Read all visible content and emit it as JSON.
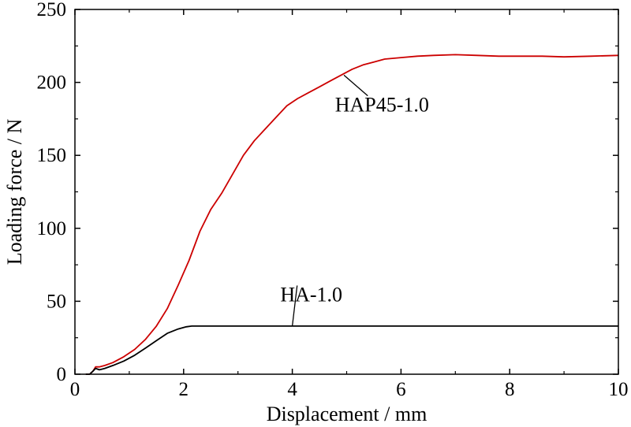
{
  "chart_data": {
    "type": "line",
    "xlabel": "Displacement / mm",
    "ylabel": "Loading force / N",
    "xlim": [
      0,
      10
    ],
    "ylim": [
      0,
      250
    ],
    "xticks": [
      0,
      2,
      4,
      6,
      8,
      10
    ],
    "yticks": [
      0,
      50,
      100,
      150,
      200,
      250
    ],
    "grid": false,
    "legend": "none",
    "series": [
      {
        "name": "HAP45-1.0",
        "color": "#cc0000",
        "x": [
          0.2,
          0.27,
          0.33,
          0.38,
          0.45,
          0.55,
          0.7,
          0.9,
          1.1,
          1.3,
          1.5,
          1.7,
          1.9,
          2.1,
          2.3,
          2.5,
          2.7,
          2.9,
          3.1,
          3.3,
          3.5,
          3.7,
          3.9,
          4.1,
          4.3,
          4.5,
          4.7,
          4.9,
          5.1,
          5.3,
          5.5,
          5.7,
          6.0,
          6.3,
          6.6,
          7.0,
          7.4,
          7.8,
          8.2,
          8.6,
          9.0,
          9.5,
          10.0
        ],
        "y": [
          0,
          0,
          2,
          5,
          5,
          6,
          8,
          12,
          17,
          24,
          33,
          45,
          61,
          78,
          98,
          113,
          124,
          137,
          150,
          160,
          168,
          176,
          184,
          189,
          193,
          197,
          201,
          205,
          209,
          212,
          214,
          216,
          217,
          218,
          218.5,
          219,
          218.5,
          218,
          218,
          218,
          217.5,
          218,
          218.5
        ]
      },
      {
        "name": "HA-1.0",
        "color": "#000000",
        "x": [
          0.2,
          0.27,
          0.33,
          0.38,
          0.45,
          0.55,
          0.7,
          0.9,
          1.1,
          1.3,
          1.5,
          1.7,
          1.9,
          2.05,
          2.15,
          2.3,
          3.0,
          4.0,
          5.0,
          6.0,
          7.0,
          8.0,
          9.0,
          10.0
        ],
        "y": [
          0,
          0,
          2,
          4,
          3,
          4,
          6,
          9,
          13,
          18,
          23,
          28,
          31,
          32.5,
          33,
          33,
          33,
          33,
          33,
          33,
          33,
          33,
          33,
          33
        ]
      }
    ],
    "annotations": [
      {
        "text": "HAP45-1.0",
        "series": "HAP45-1.0",
        "at": [
          4.95,
          205
        ],
        "label_at": [
          5.65,
          180
        ]
      },
      {
        "text": "HA-1.0",
        "series": "HA-1.0",
        "at": [
          4.0,
          33
        ],
        "label_at": [
          4.35,
          50
        ]
      }
    ]
  }
}
